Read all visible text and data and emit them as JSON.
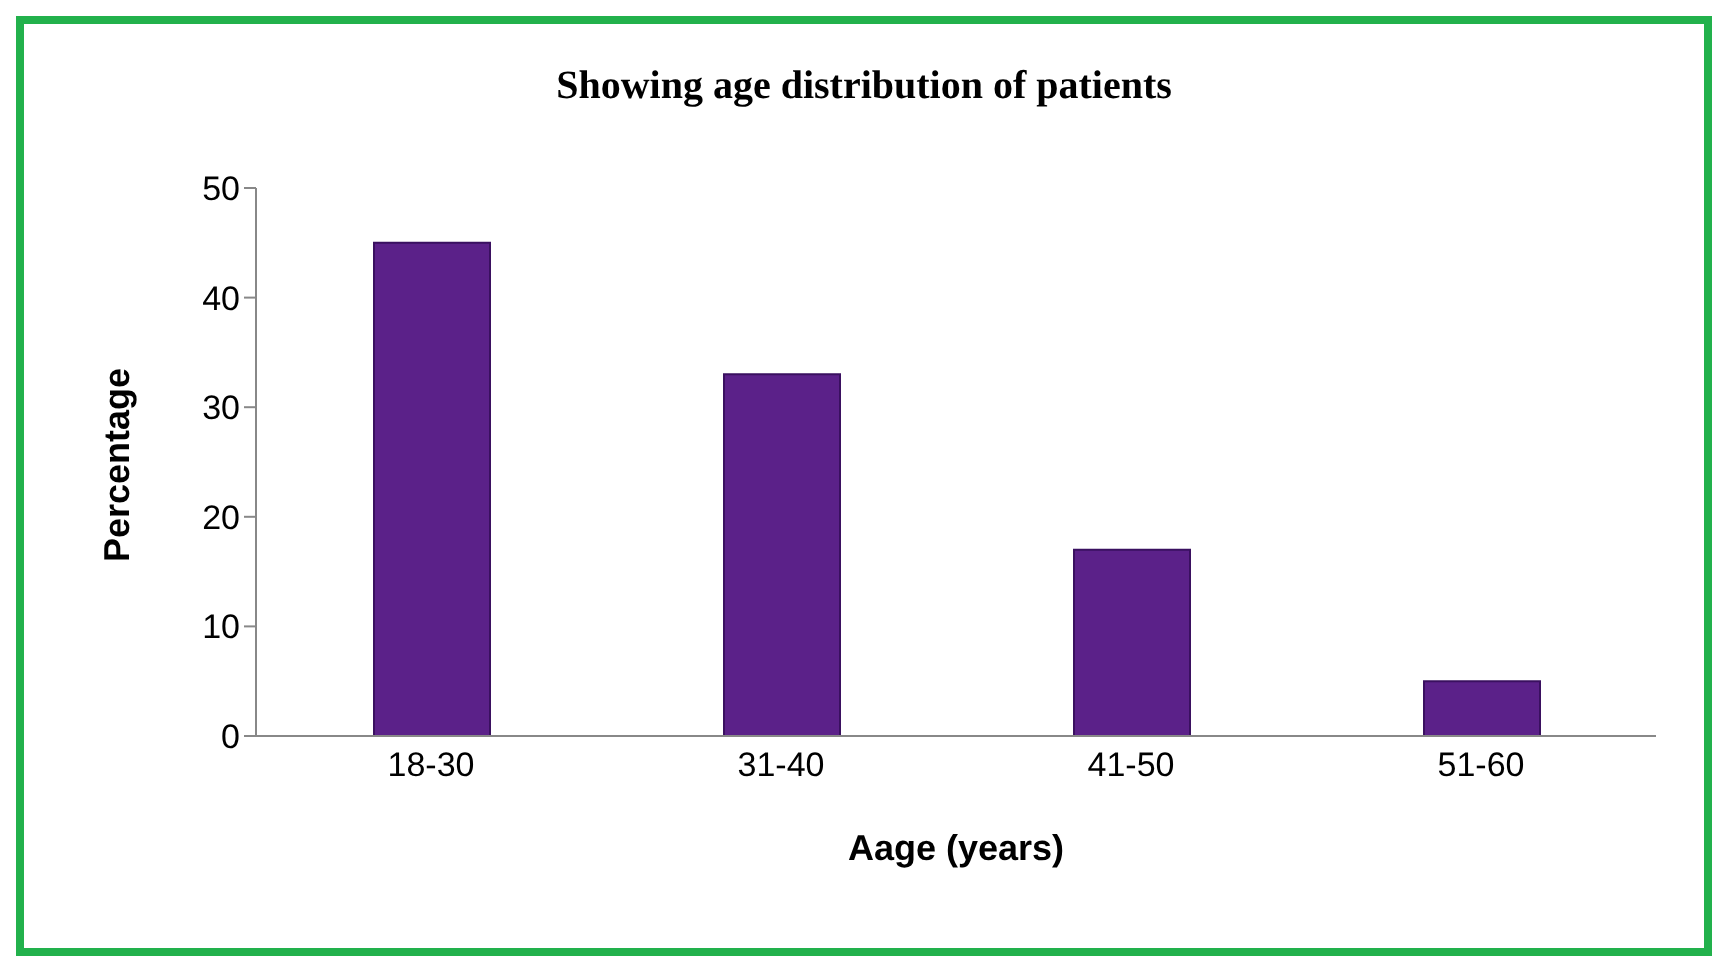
{
  "chart_data": {
    "type": "bar",
    "title": "Showing age distribution of patients",
    "xlabel": "Aage (years)",
    "ylabel": "Percentage",
    "categories": [
      "18-30",
      "31-40",
      "41-50",
      "51-60"
    ],
    "values": [
      45,
      33,
      17,
      5
    ],
    "color": "#5b2189",
    "ylim": [
      0,
      50
    ],
    "yticks": [
      0,
      10,
      20,
      30,
      40,
      50
    ],
    "grid": false,
    "legend": false
  }
}
